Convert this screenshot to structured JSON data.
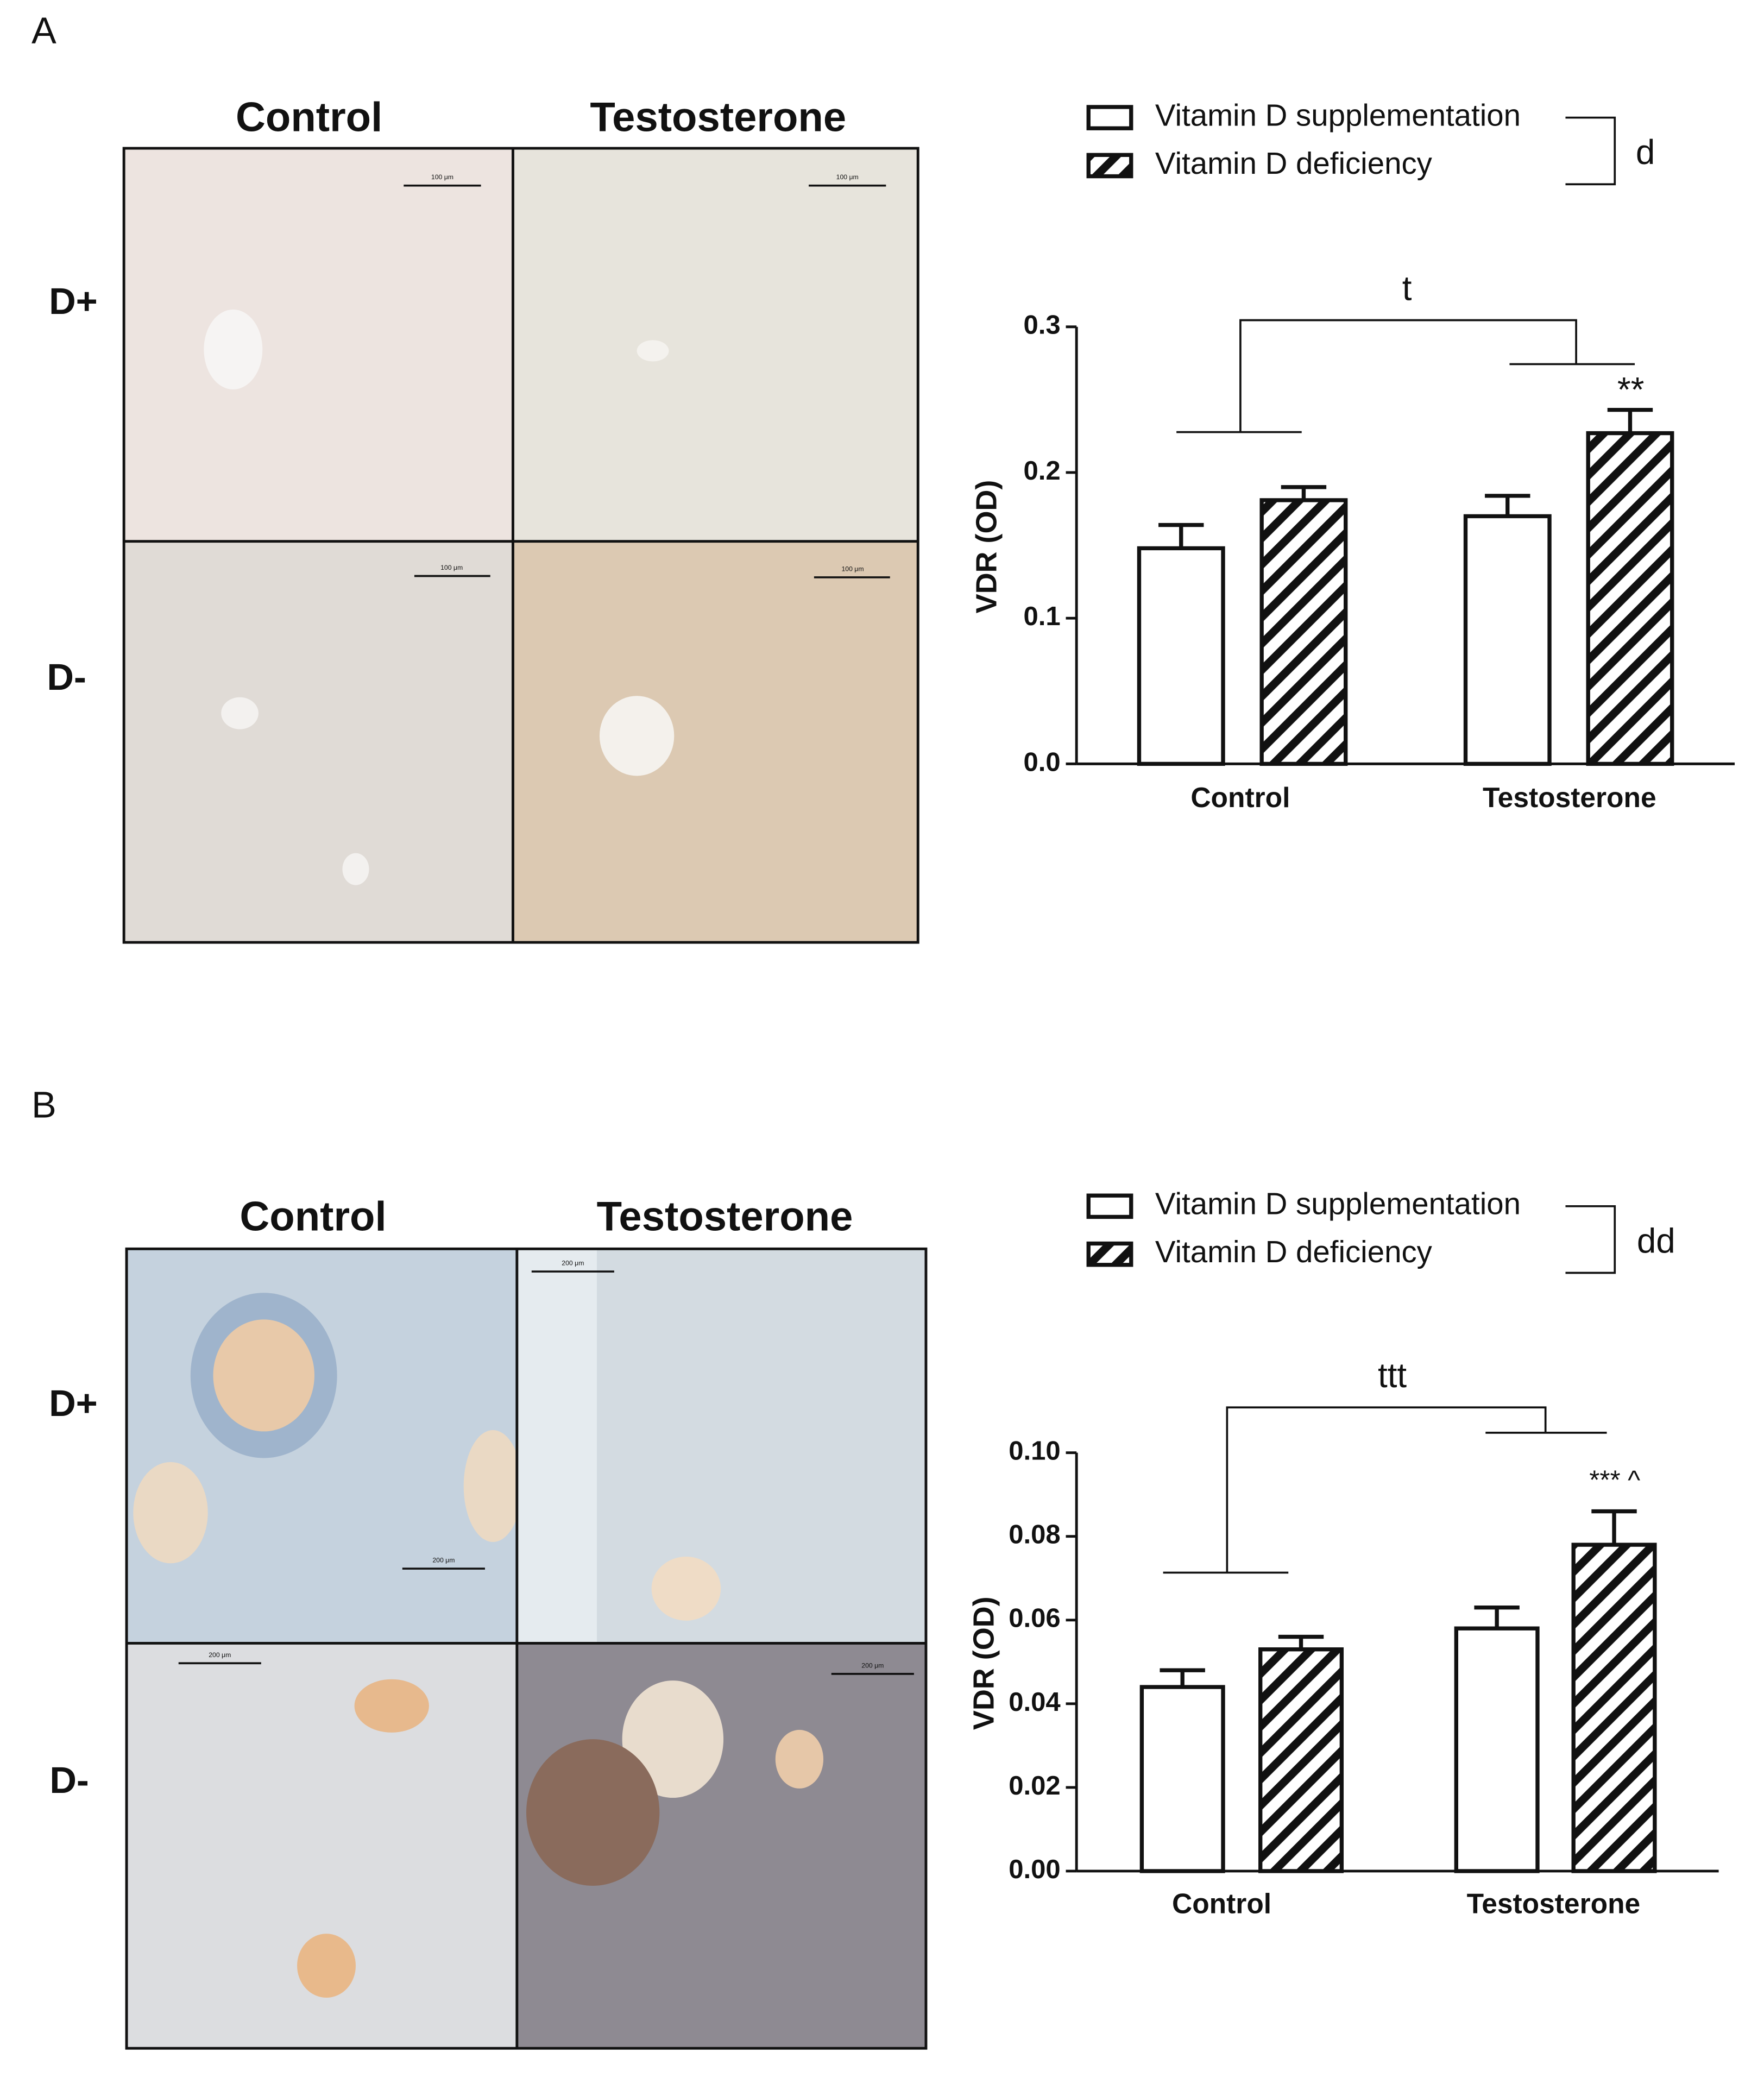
{
  "figure": {
    "panels": [
      {
        "label": "A",
        "columns": [
          "Control",
          "Testosterone"
        ],
        "rows": [
          "D+",
          "D-"
        ],
        "scale_bars": [
          "100 μm",
          "100 μm",
          "100 μm",
          "100 μm"
        ]
      },
      {
        "label": "B",
        "columns": [
          "Control",
          "Testosterone"
        ],
        "rows": [
          "D+",
          "D-"
        ],
        "scale_bars": [
          "200 μm",
          "200 μm",
          "200 μm",
          "200 μm"
        ]
      }
    ]
  },
  "chart_data": [
    {
      "type": "bar",
      "ylabel": "VDR (OD)",
      "categories": [
        "Control",
        "Testosterone"
      ],
      "series": [
        {
          "name": "Vitamin D supplementation",
          "color": "#ffffff",
          "pattern": "solid",
          "values": [
            0.148,
            0.17
          ],
          "errors": [
            0.016,
            0.014
          ]
        },
        {
          "name": "Vitamin D deficiency",
          "color": "#ffffff",
          "pattern": "hatch",
          "values": [
            0.181,
            0.227
          ],
          "errors": [
            0.009,
            0.016
          ]
        }
      ],
      "ylim": [
        0,
        0.3
      ],
      "yticks": [
        {
          "value": 0,
          "label": "0.0"
        },
        0.1,
        0.2,
        0.3
      ],
      "annotations": [
        "d",
        "t",
        "**"
      ]
    },
    {
      "type": "bar",
      "ylabel": "VDR (OD)",
      "categories": [
        "Control",
        "Testosterone"
      ],
      "series": [
        {
          "name": "Vitamin D supplementation",
          "color": "#ffffff",
          "pattern": "solid",
          "values": [
            0.044,
            0.058
          ],
          "errors": [
            0.004,
            0.005
          ]
        },
        {
          "name": "Vitamin D deficiency",
          "color": "#ffffff",
          "pattern": "hatch",
          "values": [
            0.053,
            0.078
          ],
          "errors": [
            0.003,
            0.008
          ]
        }
      ],
      "ylim": [
        0,
        0.1
      ],
      "yticks": [
        {
          "value": 0,
          "label": "0.00"
        },
        {
          "value": 0.02,
          "label": "0.02"
        },
        {
          "value": 0.04,
          "label": "0.04"
        },
        {
          "value": 0.06,
          "label": "0.06"
        },
        {
          "value": 0.08,
          "label": "0.08"
        },
        {
          "value": 0.1,
          "label": "0.10"
        }
      ],
      "annotations": [
        "dd",
        "ttt",
        "*** ^"
      ]
    }
  ]
}
